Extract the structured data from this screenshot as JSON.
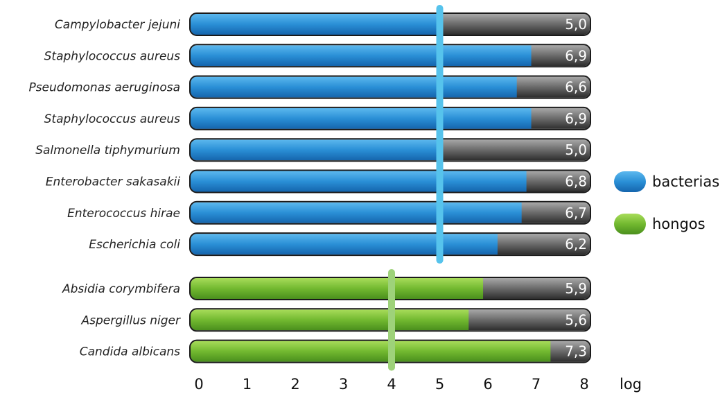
{
  "chart_data": {
    "type": "bar",
    "orientation": "horizontal",
    "x_unit": "log",
    "xlim": [
      0,
      8
    ],
    "x_ticks": [
      "0",
      "1",
      "2",
      "3",
      "4",
      "5",
      "6",
      "7",
      "8"
    ],
    "highlighted_ticks": [
      {
        "tick": "4",
        "color": "#8cc63f"
      },
      {
        "tick": "5",
        "color": "#3a9ad9"
      }
    ],
    "series": [
      {
        "name": "bacterias",
        "color": "#2a8fd6",
        "threshold": 5,
        "threshold_color": "#56c3ec",
        "bars": [
          {
            "label": "Campylobacter jejuni",
            "value": 5.0,
            "text": "5,0"
          },
          {
            "label": "Staphylococcus aureus",
            "value": 6.9,
            "text": "6,9"
          },
          {
            "label": "Pseudomonas aeruginosa",
            "value": 6.6,
            "text": "6,6"
          },
          {
            "label": "Staphylococcus aureus",
            "value": 6.9,
            "text": "6,9"
          },
          {
            "label": "Salmonella tiphymurium",
            "value": 5.0,
            "text": "5,0"
          },
          {
            "label": "Enterobacter sakasakii",
            "value": 6.8,
            "text": "6,8"
          },
          {
            "label": "Enterococcus hirae",
            "value": 6.7,
            "text": "6,7"
          },
          {
            "label": "Escherichia coli",
            "value": 6.2,
            "text": "6,2"
          }
        ]
      },
      {
        "name": "hongos",
        "color": "#6cb52e",
        "threshold": 4,
        "threshold_color": "#9ed27a",
        "bars": [
          {
            "label": "Absidia corymbifera",
            "value": 5.9,
            "text": "5,9"
          },
          {
            "label": "Aspergillus niger",
            "value": 5.6,
            "text": "5,6"
          },
          {
            "label": "Candida albicans",
            "value": 7.3,
            "text": "7,3"
          }
        ]
      }
    ],
    "legend": {
      "position": "right",
      "entries": [
        {
          "label": "bacterias",
          "color": "#2a8fd6"
        },
        {
          "label": "hongos",
          "color": "#6cb52e"
        }
      ]
    }
  }
}
